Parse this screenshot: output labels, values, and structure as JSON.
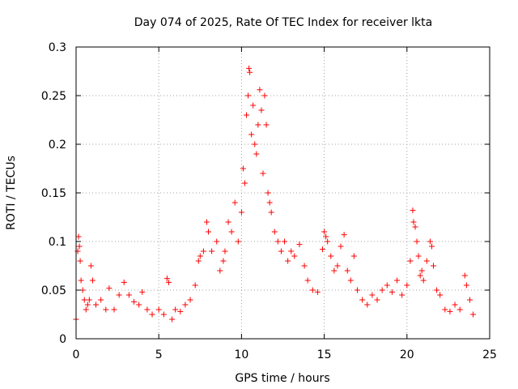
{
  "chart_data": {
    "type": "scatter",
    "title": "Day 074 of 2025, Rate Of TEC Index for receiver lkta",
    "xlabel": "GPS time / hours",
    "ylabel": "ROTI / TECUs",
    "xlim": [
      0,
      25
    ],
    "ylim": [
      0,
      0.3
    ],
    "x_ticks": [
      0,
      5,
      10,
      15,
      20,
      25
    ],
    "x_tick_labels": [
      "0",
      "5",
      "10",
      "15",
      "20",
      "25"
    ],
    "y_ticks": [
      0,
      0.05,
      0.1,
      0.15,
      0.2,
      0.25,
      0.3
    ],
    "y_tick_labels": [
      "0",
      "0.05",
      "0.1",
      "0.15",
      "0.2",
      "0.25",
      "0.3"
    ],
    "grid": true,
    "marker": "plus",
    "series_color": "#ff0000",
    "series": [
      {
        "name": "ROTI",
        "points": [
          [
            0.0,
            0.02
          ],
          [
            0.1,
            0.09
          ],
          [
            0.15,
            0.105
          ],
          [
            0.2,
            0.095
          ],
          [
            0.25,
            0.08
          ],
          [
            0.3,
            0.06
          ],
          [
            0.4,
            0.05
          ],
          [
            0.5,
            0.04
          ],
          [
            0.6,
            0.03
          ],
          [
            0.7,
            0.035
          ],
          [
            0.8,
            0.04
          ],
          [
            0.9,
            0.075
          ],
          [
            1.0,
            0.06
          ],
          [
            1.2,
            0.035
          ],
          [
            1.5,
            0.04
          ],
          [
            1.8,
            0.03
          ],
          [
            2.0,
            0.052
          ],
          [
            2.3,
            0.03
          ],
          [
            2.6,
            0.045
          ],
          [
            2.9,
            0.058
          ],
          [
            3.2,
            0.045
          ],
          [
            3.5,
            0.038
          ],
          [
            3.8,
            0.035
          ],
          [
            4.0,
            0.048
          ],
          [
            4.3,
            0.03
          ],
          [
            4.6,
            0.025
          ],
          [
            5.0,
            0.03
          ],
          [
            5.3,
            0.025
          ],
          [
            5.5,
            0.062
          ],
          [
            5.6,
            0.058
          ],
          [
            5.8,
            0.02
          ],
          [
            6.0,
            0.03
          ],
          [
            6.3,
            0.028
          ],
          [
            6.6,
            0.035
          ],
          [
            6.9,
            0.04
          ],
          [
            7.2,
            0.055
          ],
          [
            7.4,
            0.08
          ],
          [
            7.5,
            0.085
          ],
          [
            7.7,
            0.09
          ],
          [
            7.9,
            0.12
          ],
          [
            8.0,
            0.11
          ],
          [
            8.2,
            0.09
          ],
          [
            8.5,
            0.1
          ],
          [
            8.7,
            0.07
          ],
          [
            8.9,
            0.08
          ],
          [
            9.0,
            0.09
          ],
          [
            9.2,
            0.12
          ],
          [
            9.4,
            0.11
          ],
          [
            9.6,
            0.14
          ],
          [
            9.8,
            0.1
          ],
          [
            10.0,
            0.13
          ],
          [
            10.1,
            0.175
          ],
          [
            10.2,
            0.16
          ],
          [
            10.3,
            0.23
          ],
          [
            10.4,
            0.25
          ],
          [
            10.45,
            0.278
          ],
          [
            10.5,
            0.274
          ],
          [
            10.6,
            0.21
          ],
          [
            10.7,
            0.24
          ],
          [
            10.8,
            0.2
          ],
          [
            10.9,
            0.19
          ],
          [
            11.0,
            0.22
          ],
          [
            11.1,
            0.256
          ],
          [
            11.2,
            0.235
          ],
          [
            11.3,
            0.17
          ],
          [
            11.4,
            0.25
          ],
          [
            11.5,
            0.22
          ],
          [
            11.6,
            0.15
          ],
          [
            11.7,
            0.14
          ],
          [
            11.8,
            0.13
          ],
          [
            12.0,
            0.11
          ],
          [
            12.2,
            0.1
          ],
          [
            12.4,
            0.09
          ],
          [
            12.6,
            0.1
          ],
          [
            12.8,
            0.08
          ],
          [
            13.0,
            0.09
          ],
          [
            13.2,
            0.085
          ],
          [
            13.5,
            0.097
          ],
          [
            13.8,
            0.075
          ],
          [
            14.0,
            0.06
          ],
          [
            14.3,
            0.05
          ],
          [
            14.6,
            0.048
          ],
          [
            14.9,
            0.092
          ],
          [
            15.0,
            0.11
          ],
          [
            15.1,
            0.105
          ],
          [
            15.2,
            0.1
          ],
          [
            15.4,
            0.085
          ],
          [
            15.6,
            0.07
          ],
          [
            15.8,
            0.075
          ],
          [
            16.0,
            0.095
          ],
          [
            16.2,
            0.107
          ],
          [
            16.4,
            0.07
          ],
          [
            16.6,
            0.06
          ],
          [
            16.8,
            0.085
          ],
          [
            17.0,
            0.05
          ],
          [
            17.3,
            0.04
          ],
          [
            17.6,
            0.035
          ],
          [
            17.9,
            0.045
          ],
          [
            18.2,
            0.04
          ],
          [
            18.5,
            0.05
          ],
          [
            18.8,
            0.055
          ],
          [
            19.1,
            0.048
          ],
          [
            19.4,
            0.06
          ],
          [
            19.7,
            0.045
          ],
          [
            20.0,
            0.055
          ],
          [
            20.2,
            0.08
          ],
          [
            20.35,
            0.132
          ],
          [
            20.4,
            0.12
          ],
          [
            20.5,
            0.115
          ],
          [
            20.6,
            0.1
          ],
          [
            20.7,
            0.085
          ],
          [
            20.8,
            0.065
          ],
          [
            20.9,
            0.07
          ],
          [
            21.0,
            0.06
          ],
          [
            21.2,
            0.08
          ],
          [
            21.4,
            0.1
          ],
          [
            21.5,
            0.095
          ],
          [
            21.6,
            0.075
          ],
          [
            21.8,
            0.05
          ],
          [
            22.0,
            0.045
          ],
          [
            22.3,
            0.03
          ],
          [
            22.6,
            0.028
          ],
          [
            22.9,
            0.035
          ],
          [
            23.2,
            0.03
          ],
          [
            23.5,
            0.065
          ],
          [
            23.6,
            0.055
          ],
          [
            23.8,
            0.04
          ],
          [
            24.0,
            0.025
          ]
        ]
      }
    ]
  }
}
